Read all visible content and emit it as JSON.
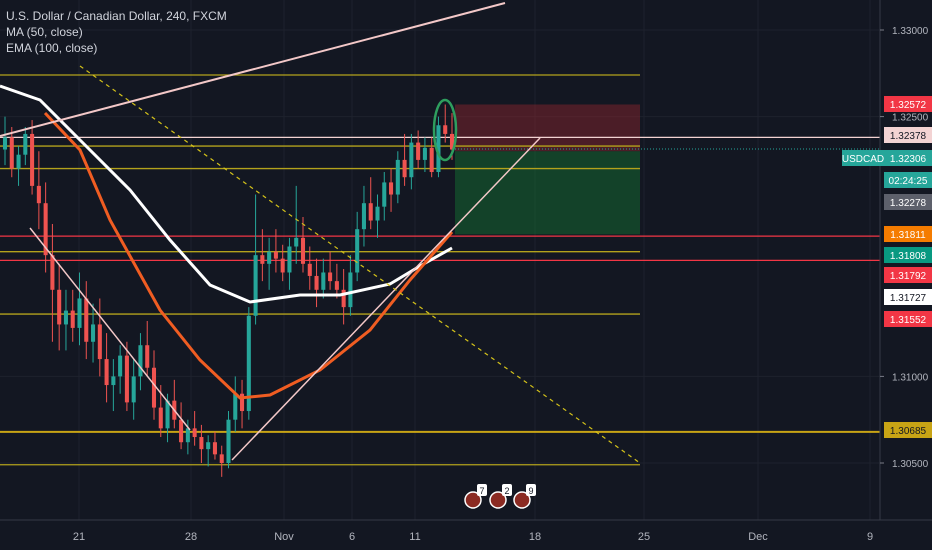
{
  "legend": {
    "title": "U.S. Dollar / Canadian Dollar, 240, FXCM",
    "ma": "MA (50, close)",
    "ema": "EMA (100, close)"
  },
  "chart_data": {
    "type": "candlestick",
    "symbol": "USDCAD",
    "timeframe": "240",
    "source": "FXCM",
    "x_tick_labels": [
      "21",
      "28",
      "Nov",
      "6",
      "11",
      "18",
      "25",
      "Dec",
      "9"
    ],
    "y_tick_labels": [
      "1.33000",
      "1.32500",
      "1.31000",
      "1.30500"
    ],
    "ylim": [
      1.303,
      1.333
    ],
    "price_labels": [
      {
        "value": "1.32572",
        "color": "#f23645"
      },
      {
        "value": "1.32378",
        "color": "#f3d3d3"
      },
      {
        "value": "1.32306",
        "color": "#26a69a",
        "tag": "USDCAD"
      },
      {
        "value": "02:24:25",
        "color": "#26a69a"
      },
      {
        "value": "1.32278",
        "color": "#5d606b"
      },
      {
        "value": "1.31811",
        "color": "#f57c00"
      },
      {
        "value": "1.31808",
        "color": "#089981"
      },
      {
        "value": "1.31792",
        "color": "#f23645"
      },
      {
        "value": "1.31727",
        "color": "#ffffff"
      },
      {
        "value": "1.31552",
        "color": "#f23645"
      },
      {
        "value": "1.30685",
        "color": "#c8a415"
      }
    ],
    "horizontal_levels": [
      {
        "price": 1.3274,
        "color": "#b3a21c"
      },
      {
        "price": 1.3238,
        "color": "#f3d3d3"
      },
      {
        "price": 1.3233,
        "color": "#b3a21c"
      },
      {
        "price": 1.322,
        "color": "#b3a21c"
      },
      {
        "price": 1.3181,
        "color": "#f23645"
      },
      {
        "price": 1.3172,
        "color": "#b3a21c"
      },
      {
        "price": 1.3167,
        "color": "#f23645"
      },
      {
        "price": 1.3136,
        "color": "#b3a21c"
      },
      {
        "price": 1.3068,
        "color": "#c8a415"
      },
      {
        "price": 1.3049,
        "color": "#b3a21c"
      }
    ],
    "trade_zones": {
      "stop": {
        "top": 1.3257,
        "bottom": 1.323
      },
      "target": {
        "top": 1.323,
        "bottom": 1.3182
      }
    },
    "candles": [
      [
        1.3231,
        1.325,
        1.3222,
        1.3238
      ],
      [
        1.3238,
        1.3244,
        1.3215,
        1.322
      ],
      [
        1.322,
        1.3233,
        1.321,
        1.3228
      ],
      [
        1.3228,
        1.3244,
        1.3222,
        1.324
      ],
      [
        1.324,
        1.3248,
        1.3205,
        1.321
      ],
      [
        1.321,
        1.323,
        1.3185,
        1.32
      ],
      [
        1.32,
        1.3212,
        1.316,
        1.317
      ],
      [
        1.317,
        1.3188,
        1.312,
        1.315
      ],
      [
        1.315,
        1.3165,
        1.3115,
        1.313
      ],
      [
        1.313,
        1.315,
        1.3115,
        1.3138
      ],
      [
        1.3138,
        1.315,
        1.312,
        1.3128
      ],
      [
        1.3128,
        1.316,
        1.3118,
        1.3145
      ],
      [
        1.3145,
        1.3155,
        1.311,
        1.312
      ],
      [
        1.312,
        1.3142,
        1.3108,
        1.313
      ],
      [
        1.313,
        1.3145,
        1.31,
        1.311
      ],
      [
        1.311,
        1.3125,
        1.3085,
        1.3095
      ],
      [
        1.3095,
        1.311,
        1.308,
        1.31
      ],
      [
        1.31,
        1.3118,
        1.309,
        1.3112
      ],
      [
        1.3112,
        1.312,
        1.308,
        1.3085
      ],
      [
        1.3085,
        1.311,
        1.3075,
        1.31
      ],
      [
        1.31,
        1.3125,
        1.3092,
        1.3118
      ],
      [
        1.3118,
        1.3132,
        1.31,
        1.3105
      ],
      [
        1.3105,
        1.3115,
        1.3075,
        1.3082
      ],
      [
        1.3082,
        1.3095,
        1.3065,
        1.307
      ],
      [
        1.307,
        1.309,
        1.3062,
        1.3086
      ],
      [
        1.3086,
        1.3098,
        1.307,
        1.3075
      ],
      [
        1.3075,
        1.3085,
        1.3058,
        1.3062
      ],
      [
        1.3062,
        1.3075,
        1.3055,
        1.307
      ],
      [
        1.307,
        1.308,
        1.306,
        1.3065
      ],
      [
        1.3065,
        1.3072,
        1.305,
        1.3058
      ],
      [
        1.3058,
        1.3066,
        1.3048,
        1.3062
      ],
      [
        1.3062,
        1.3068,
        1.3052,
        1.3055
      ],
      [
        1.3055,
        1.306,
        1.3042,
        1.305
      ],
      [
        1.305,
        1.308,
        1.3047,
        1.3075
      ],
      [
        1.3075,
        1.31,
        1.3068,
        1.309
      ],
      [
        1.309,
        1.3098,
        1.307,
        1.308
      ],
      [
        1.308,
        1.314,
        1.3075,
        1.3135
      ],
      [
        1.3135,
        1.3205,
        1.313,
        1.317
      ],
      [
        1.317,
        1.3185,
        1.3155,
        1.3165
      ],
      [
        1.3165,
        1.318,
        1.315,
        1.3172
      ],
      [
        1.3172,
        1.3185,
        1.316,
        1.3168
      ],
      [
        1.3168,
        1.3176,
        1.3155,
        1.316
      ],
      [
        1.316,
        1.318,
        1.315,
        1.3175
      ],
      [
        1.3175,
        1.321,
        1.3165,
        1.318
      ],
      [
        1.318,
        1.3192,
        1.316,
        1.3165
      ],
      [
        1.3165,
        1.3175,
        1.315,
        1.3158
      ],
      [
        1.3158,
        1.3168,
        1.314,
        1.315
      ],
      [
        1.315,
        1.3168,
        1.3145,
        1.316
      ],
      [
        1.316,
        1.3172,
        1.315,
        1.3155
      ],
      [
        1.3155,
        1.3165,
        1.3145,
        1.315
      ],
      [
        1.315,
        1.3162,
        1.313,
        1.314
      ],
      [
        1.314,
        1.317,
        1.3135,
        1.316
      ],
      [
        1.316,
        1.3195,
        1.3155,
        1.3185
      ],
      [
        1.3185,
        1.321,
        1.3175,
        1.32
      ],
      [
        1.32,
        1.3215,
        1.3185,
        1.319
      ],
      [
        1.319,
        1.3205,
        1.318,
        1.3198
      ],
      [
        1.3198,
        1.3218,
        1.319,
        1.3212
      ],
      [
        1.3212,
        1.322,
        1.3195,
        1.3205
      ],
      [
        1.3205,
        1.323,
        1.32,
        1.3225
      ],
      [
        1.3225,
        1.324,
        1.321,
        1.3215
      ],
      [
        1.3215,
        1.324,
        1.3208,
        1.3235
      ],
      [
        1.3235,
        1.3242,
        1.322,
        1.3225
      ],
      [
        1.3225,
        1.3238,
        1.3218,
        1.3232
      ],
      [
        1.3232,
        1.3238,
        1.3215,
        1.3218
      ],
      [
        1.3218,
        1.325,
        1.3215,
        1.3245
      ],
      [
        1.3245,
        1.3257,
        1.3235,
        1.324
      ],
      [
        1.324,
        1.3252,
        1.3225,
        1.3231
      ]
    ]
  }
}
